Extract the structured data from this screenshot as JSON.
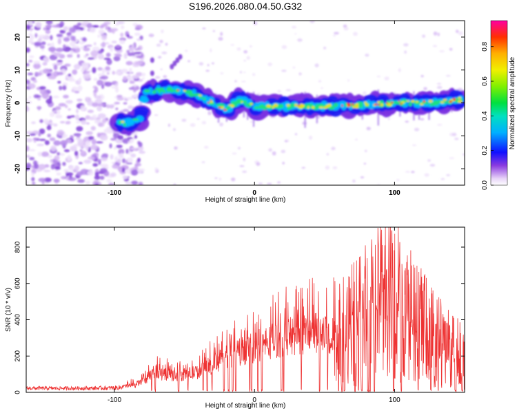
{
  "title": "S196.2026.080.04.50.G32",
  "chart_data": [
    {
      "type": "heatmap",
      "name": "spectrogram",
      "xlabel": "Height of straight line (km)",
      "ylabel": "Frequency (Hz)",
      "xlim": [
        -163,
        150
      ],
      "ylim": [
        -25,
        25
      ],
      "xticks": [
        -100,
        0,
        100
      ],
      "yticks": [
        -20,
        -10,
        0,
        10,
        20
      ],
      "colorbar": {
        "label": "Normalized spectral amplitude",
        "range": [
          0,
          0.95
        ],
        "ticks": [
          0.0,
          0.2,
          0.4,
          0.6,
          0.8
        ]
      },
      "ridge": [
        {
          "x": -100,
          "y": -6
        },
        {
          "x": -90,
          "y": -6
        },
        {
          "x": -82,
          "y": -5
        },
        {
          "x": -78,
          "y": 3
        },
        {
          "x": -65,
          "y": 4
        },
        {
          "x": -45,
          "y": 3
        },
        {
          "x": -30,
          "y": 0
        },
        {
          "x": -20,
          "y": -2
        },
        {
          "x": -10,
          "y": 1
        },
        {
          "x": 0,
          "y": -1
        },
        {
          "x": 30,
          "y": -1
        },
        {
          "x": 60,
          "y": -1
        },
        {
          "x": 100,
          "y": 0
        },
        {
          "x": 130,
          "y": 0
        },
        {
          "x": 145,
          "y": 1
        }
      ]
    },
    {
      "type": "line",
      "name": "snr",
      "xlabel": "Height of straight line (km)",
      "ylabel": "SNR (10 * v/v)",
      "xlim": [
        -163,
        150
      ],
      "ylim": [
        0,
        910
      ],
      "xticks": [
        -100,
        0,
        100
      ],
      "yticks": [
        0,
        200,
        400,
        600,
        800
      ],
      "color": "#ee3333",
      "envelope": [
        {
          "x": -163,
          "y": 30
        },
        {
          "x": -120,
          "y": 30
        },
        {
          "x": -100,
          "y": 35
        },
        {
          "x": -85,
          "y": 60
        },
        {
          "x": -70,
          "y": 150
        },
        {
          "x": -55,
          "y": 130
        },
        {
          "x": -40,
          "y": 160
        },
        {
          "x": -25,
          "y": 250
        },
        {
          "x": -10,
          "y": 320
        },
        {
          "x": 0,
          "y": 360
        },
        {
          "x": 20,
          "y": 430
        },
        {
          "x": 40,
          "y": 470
        },
        {
          "x": 50,
          "y": 450
        },
        {
          "x": 65,
          "y": 500
        },
        {
          "x": 80,
          "y": 620
        },
        {
          "x": 90,
          "y": 760
        },
        {
          "x": 100,
          "y": 720
        },
        {
          "x": 110,
          "y": 600
        },
        {
          "x": 125,
          "y": 450
        },
        {
          "x": 140,
          "y": 330
        },
        {
          "x": 150,
          "y": 300
        }
      ]
    }
  ]
}
